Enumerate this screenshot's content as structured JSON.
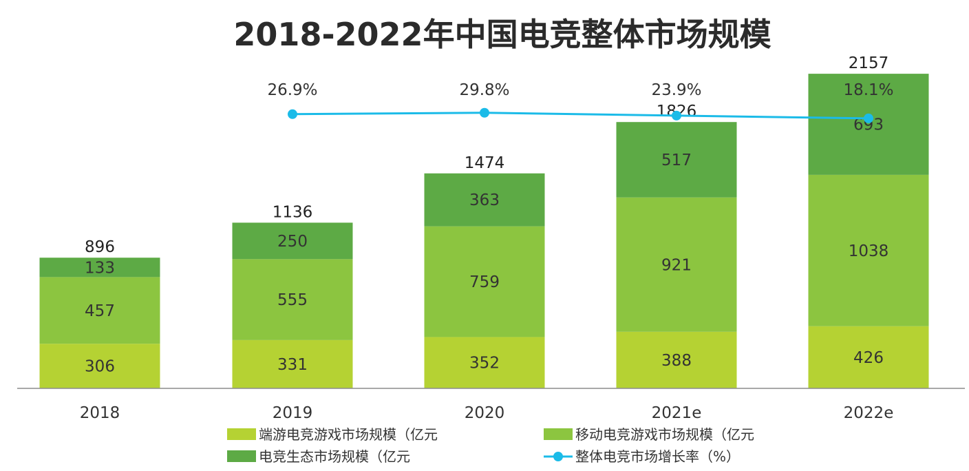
{
  "chart_data": {
    "type": "bar",
    "stacked": true,
    "title": "2018-2022年中国电竞整体市场规模",
    "categories": [
      "2018",
      "2019",
      "2020",
      "2021e",
      "2022e"
    ],
    "series": [
      {
        "name": "端游电竞游戏市场规模（亿元",
        "values": [
          306,
          331,
          352,
          388,
          426
        ],
        "color": "#b5d233"
      },
      {
        "name": "移动电竞游戏市场规模（亿元",
        "values": [
          457,
          555,
          759,
          921,
          1038
        ],
        "color": "#8cc540"
      },
      {
        "name": "电竞生态市场规模（亿元",
        "values": [
          133,
          250,
          363,
          517,
          693
        ],
        "color": "#5daa45"
      }
    ],
    "totals": [
      896,
      1136,
      1474,
      1826,
      2157
    ],
    "line_series": {
      "name": "整体电竞市场增长率（%）",
      "color": "#1bbbe8",
      "values": [
        null,
        26.9,
        29.8,
        23.9,
        18.1
      ],
      "labels": [
        "",
        "26.9%",
        "29.8%",
        "23.9%",
        "18.1%"
      ]
    },
    "ylim": [
      0,
      2200
    ],
    "xlabel": "",
    "ylabel": "",
    "grid": false,
    "legend_position": "bottom"
  }
}
